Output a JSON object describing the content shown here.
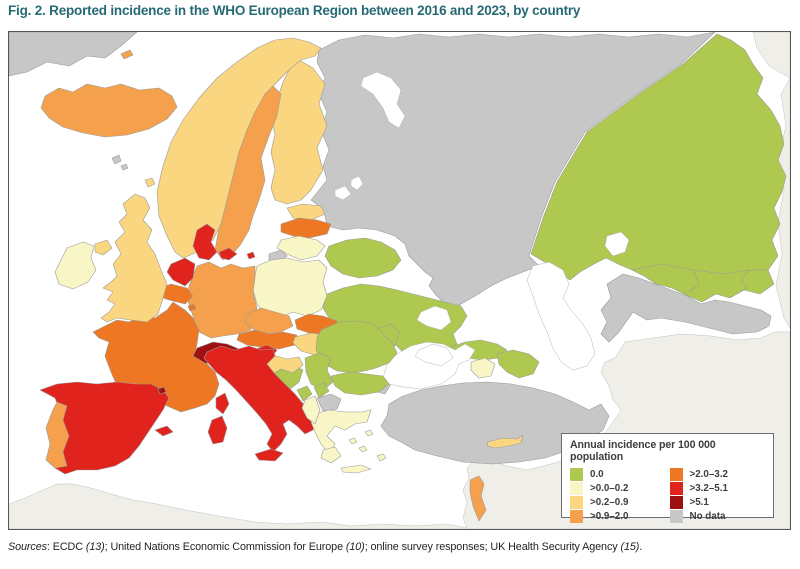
{
  "figure": {
    "title": "Fig. 2. Reported incidence in the WHO European Region between 2016 and 2023, by country"
  },
  "legend": {
    "title": "Annual incidence per 100 000 population",
    "entries": [
      {
        "label": "0.0",
        "key": "cat_0"
      },
      {
        "label": ">0.0–0.2",
        "key": "cat_0_02"
      },
      {
        "label": ">0.2–0.9",
        "key": "cat_02_09"
      },
      {
        "label": ">0.9–2.0",
        "key": "cat_09_2"
      },
      {
        "label": ">2.0–3.2",
        "key": "cat_2_32"
      },
      {
        "label": ">3.2–5.1",
        "key": "cat_32_51"
      },
      {
        "label": ">5.1",
        "key": "cat_51"
      },
      {
        "label": "No data",
        "key": "no_data"
      }
    ]
  },
  "palette": {
    "cat_0": "#aec850",
    "cat_0_02": "#f8f6c6",
    "cat_02_09": "#fbd680",
    "cat_09_2": "#f5a04c",
    "cat_2_32": "#ed7723",
    "cat_32_51": "#e0231c",
    "cat_51": "#9e1112",
    "no_data": "#c7c7c7",
    "outside_region": "#efeee8",
    "water": "#ffffff",
    "title_color": "#266a74"
  },
  "map": {
    "countries": {
      "iceland": "cat_09_2",
      "norway": "cat_02_09",
      "sweden": "cat_09_2",
      "finland": "cat_02_09",
      "denmark": "cat_32_51",
      "united-kingdom": "cat_02_09",
      "northern-ireland": "cat_02_09",
      "ireland": "cat_0_02",
      "netherlands": "cat_32_51",
      "belgium": "cat_2_32",
      "luxembourg": "cat_2_32",
      "germany": "cat_09_2",
      "france": "cat_2_32",
      "switzerland": "cat_51",
      "austria": "cat_2_32",
      "czechia": "cat_09_2",
      "poland": "cat_0_02",
      "estonia": "cat_02_09",
      "latvia": "cat_2_32",
      "lithuania": "cat_0_02",
      "kaliningrad": "no_data",
      "belarus": "cat_0",
      "ukraine": "cat_0",
      "moldova": "cat_0",
      "romania": "cat_0",
      "bulgaria": "cat_0",
      "hungary": "cat_02_09",
      "slovakia": "cat_2_32",
      "slovenia": "cat_32_51",
      "croatia": "cat_02_09",
      "bosnia-herzegovina": "cat_0",
      "serbia": "cat_0",
      "montenegro": "cat_0",
      "kosovo": "cat_0",
      "north-macedonia": "no_data",
      "albania": "cat_0_02",
      "greece": "cat_0_02",
      "spain": "cat_32_51",
      "portugal": "cat_09_2",
      "andorra": "cat_51",
      "italy": "cat_32_51",
      "sicily": "cat_32_51",
      "sardinia": "cat_32_51",
      "corsica": "cat_32_51",
      "balearic-islands": "cat_32_51",
      "turkey": "no_data",
      "turkey-europe": "no_data",
      "russia": "no_data",
      "greenland": "no_data",
      "faroe-islands": "no_data",
      "faroe-islands-2": "no_data",
      "shetland": "cat_02_09",
      "jan-mayen": "cat_09_2",
      "georgia": "cat_0",
      "armenia": "cat_0_02",
      "azerbaijan": "cat_0",
      "kazakhstan-central-asia": "cat_0",
      "turkmenistan": "no_data",
      "cyprus": "cat_02_09",
      "israel": "cat_09_2",
      "crete": "cat_0_02",
      "peloponnese": "cat_0_02",
      "rhodes": "cat_0_02",
      "greek-island-1": "cat_0_02",
      "greek-island-2": "cat_0_02",
      "greek-island-3": "cat_0_02",
      "denmark-islands": "cat_32_51",
      "bornholm": "cat_32_51"
    }
  },
  "footer": {
    "label": "Sources",
    "seg1": ": ECDC ",
    "ref1": "(13)",
    "seg2": "; United Nations Economic Commission for Europe ",
    "ref2": "(10)",
    "seg3": "; online survey responses; UK Health Security Agency ",
    "ref3": "(15)",
    "seg4": "."
  }
}
